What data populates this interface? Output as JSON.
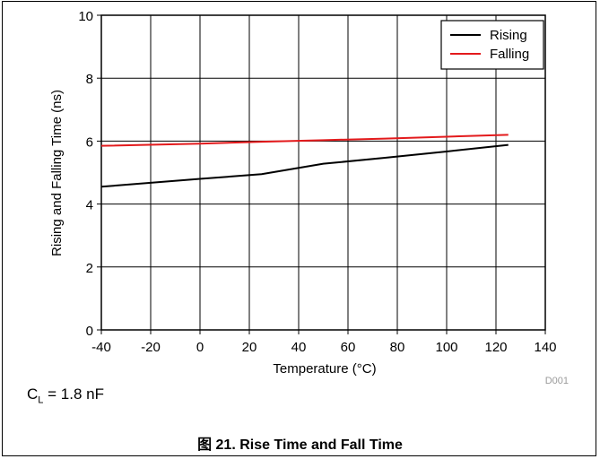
{
  "chart_data": {
    "type": "line",
    "ylabel": "Rising and Falling Time (ns)",
    "xlabel": "Temperature (°C)",
    "xlim": [
      -40,
      140
    ],
    "ylim": [
      0,
      10
    ],
    "x_ticks": [
      "-40",
      "-20",
      "0",
      "20",
      "40",
      "60",
      "80",
      "100",
      "120",
      "140"
    ],
    "y_ticks": [
      "0",
      "2",
      "4",
      "6",
      "8",
      "10"
    ],
    "grid": true,
    "legend_position": "top-right",
    "series": [
      {
        "name": "Rising",
        "color": "#000000",
        "x": [
          -40,
          0,
          25,
          50,
          75,
          100,
          125
        ],
        "y": [
          4.55,
          4.8,
          4.95,
          5.28,
          5.47,
          5.67,
          5.88
        ]
      },
      {
        "name": "Falling",
        "color": "#e31a1c",
        "x": [
          -40,
          0,
          25,
          50,
          75,
          100,
          125
        ],
        "y": [
          5.85,
          5.92,
          5.98,
          6.03,
          6.08,
          6.14,
          6.2
        ]
      }
    ],
    "watermark": "D001"
  },
  "condition": {
    "label_main": "C",
    "label_sub": "L",
    "label_rest": " = 1.8 nF"
  },
  "caption": "图 21. Rise Time and Fall Time"
}
